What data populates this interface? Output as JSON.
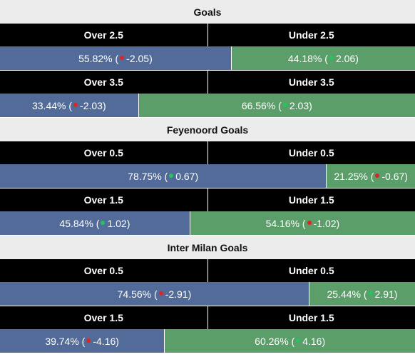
{
  "colors": {
    "section_bg": "#ececec",
    "header_bg": "#000000",
    "over_bar": "#536b99",
    "under_bar": "#5b9e6a",
    "dot_up": "#22c55e",
    "dot_down": "#dc2626"
  },
  "sections": [
    {
      "title": "Goals",
      "markets": [
        {
          "left_label": "Over 2.5",
          "right_label": "Under 2.5",
          "left_pct_value": 55.82,
          "left_pct": "55.82%",
          "left_change": "-2.05",
          "left_dir": "down",
          "right_pct": "44.18%",
          "right_change": "2.06",
          "right_dir": "up"
        },
        {
          "left_label": "Over 3.5",
          "right_label": "Under 3.5",
          "left_pct_value": 33.44,
          "left_pct": "33.44%",
          "left_change": "-2.03",
          "left_dir": "down",
          "right_pct": "66.56%",
          "right_change": "2.03",
          "right_dir": "up"
        }
      ]
    },
    {
      "title": "Feyenoord Goals",
      "markets": [
        {
          "left_label": "Over 0.5",
          "right_label": "Under 0.5",
          "left_pct_value": 78.75,
          "left_pct": "78.75%",
          "left_change": "0.67",
          "left_dir": "up",
          "right_pct": "21.25%",
          "right_change": "-0.67",
          "right_dir": "down"
        },
        {
          "left_label": "Over 1.5",
          "right_label": "Under 1.5",
          "left_pct_value": 45.84,
          "left_pct": "45.84%",
          "left_change": "1.02",
          "left_dir": "up",
          "right_pct": "54.16%",
          "right_change": "-1.02",
          "right_dir": "down"
        }
      ]
    },
    {
      "title": "Inter Milan Goals",
      "markets": [
        {
          "left_label": "Over 0.5",
          "right_label": "Under 0.5",
          "left_pct_value": 74.56,
          "left_pct": "74.56%",
          "left_change": "-2.91",
          "left_dir": "down",
          "right_pct": "25.44%",
          "right_change": "2.91",
          "right_dir": "up"
        },
        {
          "left_label": "Over 1.5",
          "right_label": "Under 1.5",
          "left_pct_value": 39.74,
          "left_pct": "39.74%",
          "left_change": "-4.16",
          "left_dir": "down",
          "right_pct": "60.26%",
          "right_change": "4.16",
          "right_dir": "up"
        }
      ]
    }
  ]
}
